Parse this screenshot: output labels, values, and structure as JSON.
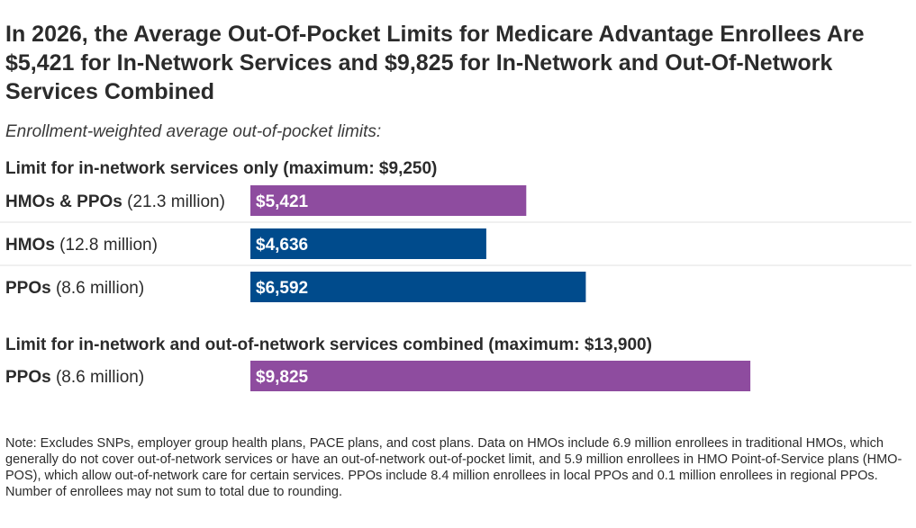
{
  "title": "In 2026, the Average Out-Of-Pocket Limits for Medicare Advantage Enrollees Are $5,421 for In-Network Services and $9,825 for In-Network and Out-Of-Network Services Combined",
  "subtitle": "Enrollment-weighted average out-of-pocket limits:",
  "note": "Note: Excludes SNPs, employer group health plans, PACE plans, and cost plans. Data on HMOs include 6.9 million enrollees in traditional HMOs, which generally do not cover out-of-network services or have an out-of-network out-of-pocket limit, and 5.9 million enrollees in HMO Point-of-Service plans (HMO-POS), which allow out-of-network care for certain services. PPOs include 8.4 million enrollees in local PPOs and 0.1 million enrollees in regional PPOs. Number of enrollees may not sum to total due to rounding.",
  "colors": {
    "purple": "#8e4c9f",
    "blue": "#004b8c"
  },
  "chart_data": {
    "type": "bar",
    "orientation": "horizontal",
    "xlim": [
      0,
      15000
    ],
    "groups": [
      {
        "title": "Limit for in-network services only (maximum: $9,250)",
        "bars": [
          {
            "label_bold": "HMOs & PPOs",
            "label_rest": " (21.3 million)",
            "value": 5421,
            "value_label": "$5,421",
            "color": "#8e4c9f"
          },
          {
            "label_bold": "HMOs",
            "label_rest": " (12.8 million)",
            "value": 4636,
            "value_label": "$4,636",
            "color": "#004b8c"
          },
          {
            "label_bold": "PPOs",
            "label_rest": " (8.6 million)",
            "value": 6592,
            "value_label": "$6,592",
            "color": "#004b8c"
          }
        ]
      },
      {
        "title": "Limit for in-network and out-of-network services combined (maximum: $13,900)",
        "bars": [
          {
            "label_bold": "PPOs",
            "label_rest": " (8.6 million)",
            "value": 9825,
            "value_label": "$9,825",
            "color": "#8e4c9f"
          }
        ]
      }
    ]
  }
}
